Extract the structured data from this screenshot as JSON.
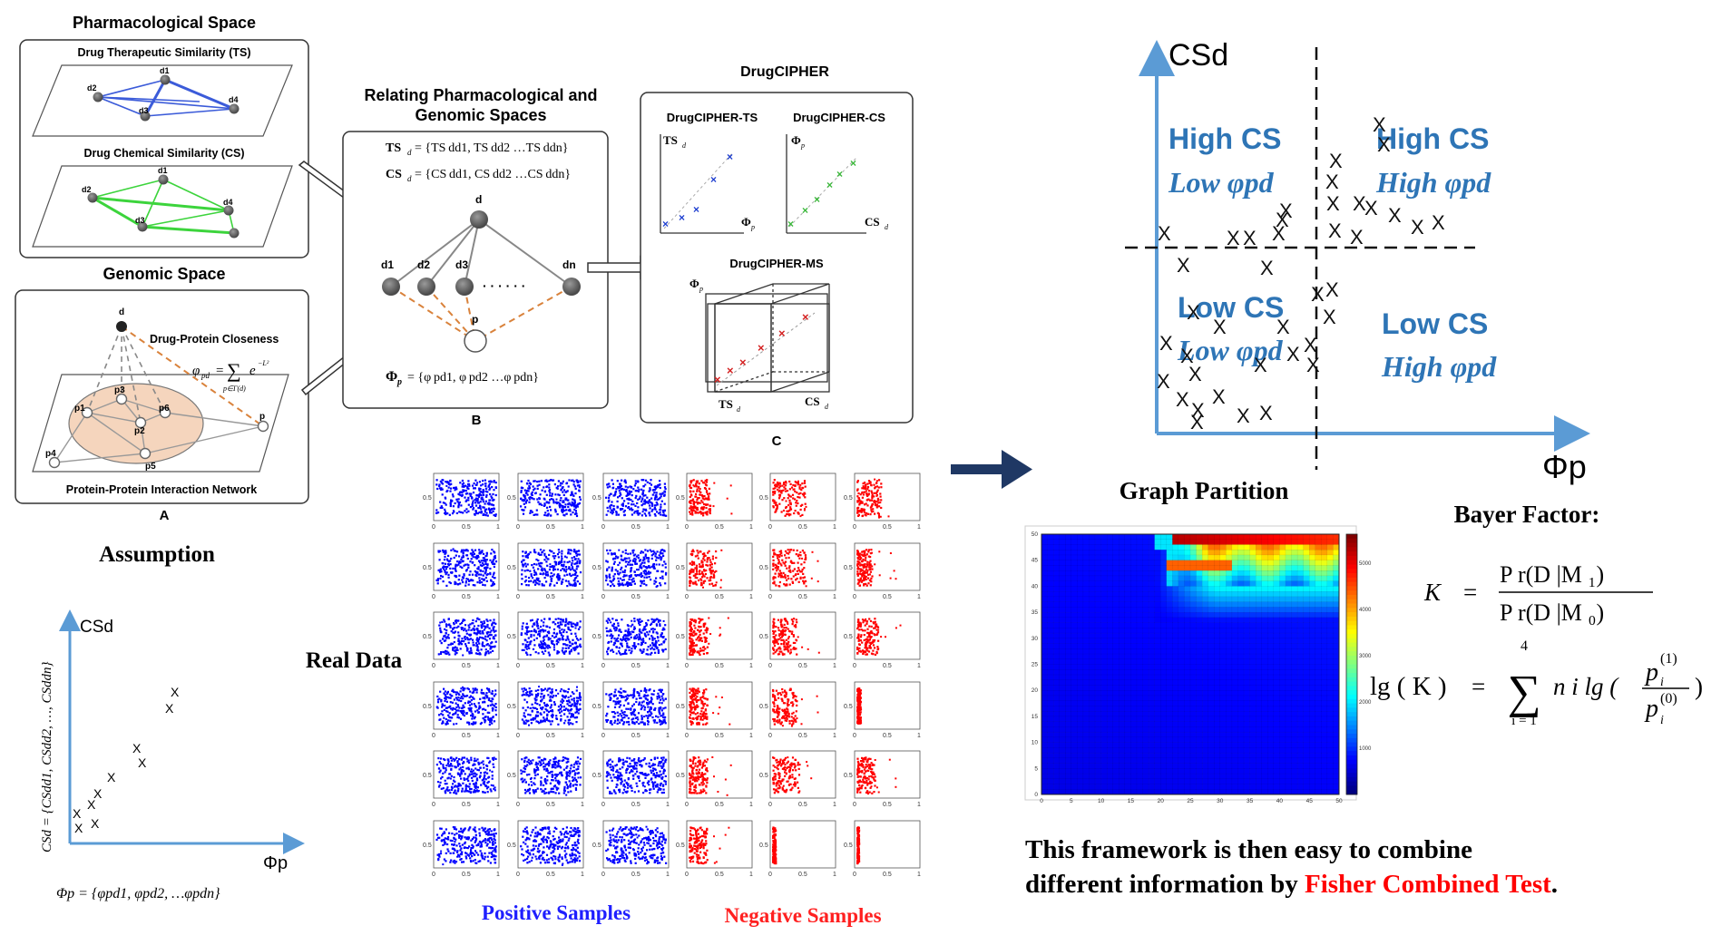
{
  "panel_a": {
    "pharm_space_title": "Pharmacological Space",
    "ts_title": "Drug Therapeutic Similarity (TS)",
    "cs_title": "Drug Chemical Similarity (CS)",
    "genomic_title": "Genomic Space",
    "closeness_label": "Drug-Protein Closeness",
    "closeness_lhs": "φ",
    "closeness_sub": "pd",
    "closeness_eq": "=",
    "closeness_sum": "∑",
    "closeness_sum_sub": "p∈Γ(d)",
    "closeness_exp": "e",
    "closeness_exp_sup": "−L²",
    "ppi_title": "Protein-Protein Interaction Network",
    "letter": "A",
    "drug_node": "d",
    "protein_node": "p",
    "node_d1": "d1",
    "node_d2": "d2",
    "node_d3": "d3",
    "node_d4": "d4",
    "node_p1": "p1",
    "node_p2": "p2",
    "node_p3": "p3",
    "node_p4": "p4",
    "node_p5": "p5",
    "node_p6": "p6"
  },
  "panel_b": {
    "title_line1": "Relating Pharmacological and",
    "title_line2": "Genomic Spaces",
    "ts_eq_lhs": "TS",
    "ts_eq_rhs": "= {TS dd1, TS dd2 …TS ddn}",
    "cs_eq_lhs": "CS",
    "cs_eq_rhs": "= {CS dd1, CS dd2 …CS ddn}",
    "sub_d": "d",
    "phi_eq_lhs": "Φ",
    "sub_p": "p",
    "phi_eq_rhs": "= {φ pd1, φ pd2 …φ pdn}",
    "node_d": "d",
    "node_d1": "d1",
    "node_d2": "d2",
    "node_d3": "d3",
    "node_dots": "· · · · · ·",
    "node_dn": "dn",
    "node_p": "p",
    "letter": "B"
  },
  "panel_c": {
    "title": "DrugCIPHER",
    "ts_label": "DrugCIPHER-TS",
    "cs_label": "DrugCIPHER-CS",
    "ms_label": "DrugCIPHER-MS",
    "axis_ts": "TS",
    "axis_phi": "Φ",
    "axis_cs": "CS",
    "sub_d": "d",
    "sub_p": "p",
    "letter": "C"
  },
  "assumption": {
    "title": "Assumption",
    "y_axis": "CSd",
    "y_formula": "CSd = {CSdd1, CSdd2, …, CSddn}",
    "x_axis": "Φp",
    "x_formula": "Φp = {φpd1, φpd2, …φpdn}",
    "marker": "X"
  },
  "real_data": {
    "title": "Real Data",
    "positive_label": "Positive Samples",
    "negative_label": "Negative Samples",
    "tick_0": "0",
    "tick_05": "0.5",
    "tick_1": "1"
  },
  "partition": {
    "y_axis": "CSd",
    "x_axis": "Φp",
    "marker": "X",
    "ul_line1": "High CS",
    "ul_line2": "Low φpd",
    "ur_line1": "High CS",
    "ur_line2": "High φpd",
    "ll_line1": "Low CS",
    "ll_line2": "Low φpd",
    "lr_line1": "Low CS",
    "lr_line2": "High φpd",
    "caption": "Graph Partition"
  },
  "heatmap": {
    "y_ticks": [
      "50",
      "45",
      "40",
      "35",
      "30",
      "25",
      "20",
      "15",
      "10",
      "5",
      "0"
    ],
    "x_ticks": [
      "0",
      "5",
      "10",
      "15",
      "20",
      "25",
      "30",
      "35",
      "40",
      "45",
      "50"
    ],
    "cb_ticks": [
      "5000",
      "4000",
      "3000",
      "2000",
      "1000"
    ]
  },
  "bayes": {
    "title": "Bayer Factor:",
    "k": "K",
    "eq": "=",
    "num": "P r(D |M ₁)",
    "den": "P r(D |M ₀)",
    "lg": "lg ( K )",
    "sum": "∑",
    "sum_top": "4",
    "sum_bot": "i = 1",
    "term": "n i lg (",
    "p_top": "p",
    "p_top_sup": "(1)",
    "p_bot": "p",
    "p_bot_sup": "(0)",
    "sub_i": "i",
    "close": ")"
  },
  "conclusion": {
    "line1": "This framework is then easy to combine",
    "line2_pre": "different information by ",
    "line2_highlight": "Fisher Combined Test",
    "line2_post": "."
  },
  "colors": {
    "blue_axis": "#5b9bd5",
    "partition_text": "#2e75b6",
    "positive": "#0000ff",
    "negative": "#ff0000",
    "arrow": "#1f3864",
    "fisher": "#ff0000",
    "pos_label": "#1f1fff",
    "neg_label": "#ff2020"
  }
}
